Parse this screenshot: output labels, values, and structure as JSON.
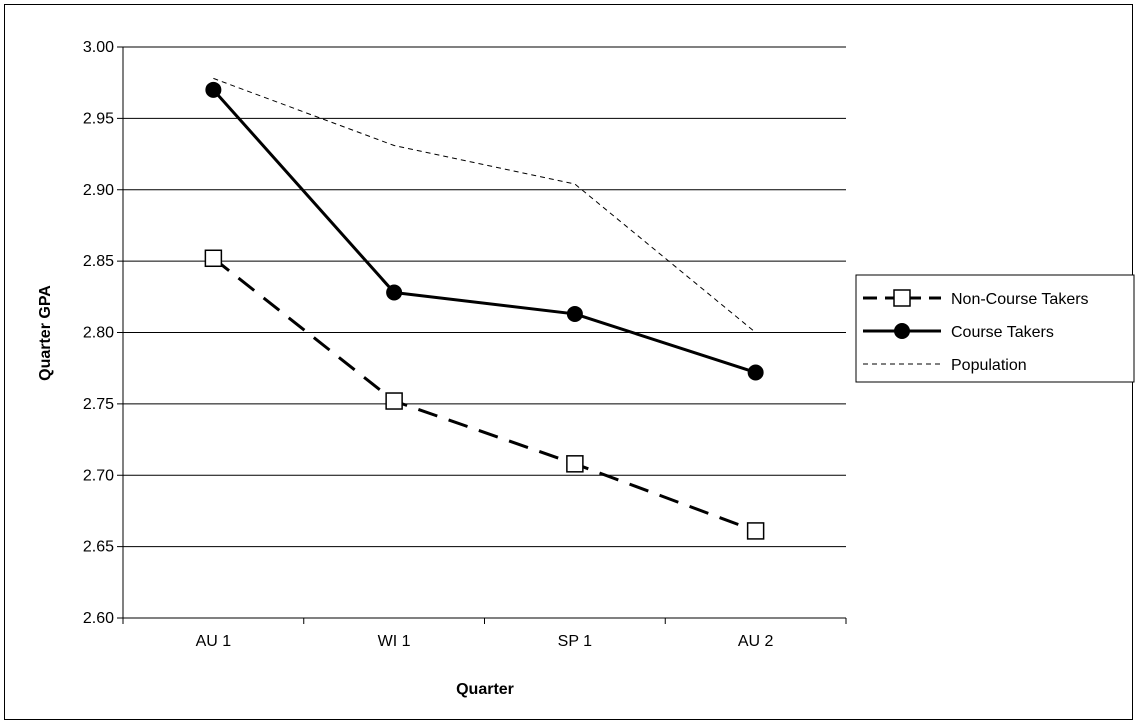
{
  "chart_data": {
    "type": "line",
    "title": "",
    "xlabel": "Quarter",
    "ylabel": "Quarter GPA",
    "categories": [
      "AU 1",
      "WI 1",
      "SP 1",
      "AU 2"
    ],
    "ylim": [
      2.6,
      3.0
    ],
    "yticks": [
      "2.60",
      "2.65",
      "2.70",
      "2.75",
      "2.80",
      "2.85",
      "2.90",
      "2.95",
      "3.00"
    ],
    "ytick_values": [
      2.6,
      2.65,
      2.7,
      2.75,
      2.8,
      2.85,
      2.9,
      2.95,
      3.0
    ],
    "grid": "horizontal",
    "legend_position": "right",
    "series": [
      {
        "name": "Non-Course Takers",
        "values": [
          2.852,
          2.752,
          2.708,
          2.661
        ],
        "style": "long-dash",
        "marker": "open-square",
        "color": "#000000"
      },
      {
        "name": "Course Takers",
        "values": [
          2.97,
          2.828,
          2.813,
          2.772
        ],
        "style": "solid",
        "marker": "filled-circle",
        "color": "#000000"
      },
      {
        "name": "Population",
        "values": [
          2.978,
          2.931,
          2.904,
          2.8
        ],
        "style": "thin-dash",
        "marker": "none",
        "color": "#000000"
      }
    ]
  }
}
